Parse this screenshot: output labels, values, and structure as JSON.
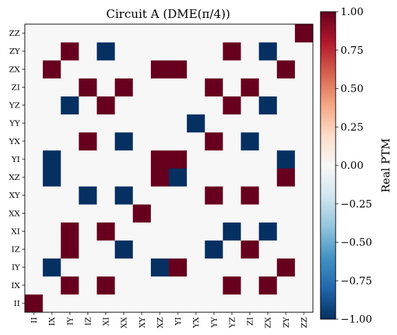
{
  "chart_data": {
    "type": "heatmap",
    "title": "Circuit A (DME(π/4))",
    "x_labels": [
      "II",
      "IX",
      "IY",
      "IZ",
      "XI",
      "XX",
      "XY",
      "XZ",
      "YI",
      "YX",
      "YY",
      "YZ",
      "ZI",
      "ZX",
      "ZY",
      "ZZ"
    ],
    "y_labels": [
      "II",
      "IX",
      "IY",
      "IZ",
      "XI",
      "XX",
      "XY",
      "XZ",
      "YI",
      "YX",
      "YY",
      "YZ",
      "ZI",
      "ZX",
      "ZY",
      "ZZ"
    ],
    "colorbar_label": "Real PTM",
    "colorbar_ticks": [
      "1.00",
      "0.75",
      "0.50",
      "0.25",
      "0.00",
      "−0.25",
      "−0.50",
      "−0.75",
      "−1.00"
    ],
    "colorbar_tick_values": [
      1,
      0.75,
      0.5,
      0.25,
      0,
      -0.25,
      -0.5,
      -0.75,
      -1
    ],
    "vmin": -1,
    "vmax": 1,
    "colormap": "RdBu_r",
    "matrix": [
      [
        1,
        0,
        0,
        0,
        0,
        0,
        0,
        0,
        0,
        0,
        0,
        0,
        0,
        0,
        0,
        0
      ],
      [
        0,
        0,
        1,
        0,
        1,
        0,
        0,
        0,
        0,
        0,
        0,
        1,
        0,
        1,
        0,
        0
      ],
      [
        0,
        -1,
        0,
        0,
        0,
        0,
        0,
        -1,
        1,
        0,
        0,
        0,
        0,
        0,
        1,
        0
      ],
      [
        0,
        0,
        1,
        0,
        0,
        -1,
        0,
        0,
        0,
        0,
        -1,
        0,
        1,
        0,
        0,
        0
      ],
      [
        0,
        0,
        1,
        0,
        1,
        0,
        0,
        0,
        0,
        0,
        0,
        -1,
        0,
        -1,
        0,
        0
      ],
      [
        0,
        0,
        0,
        0,
        0,
        0,
        1,
        0,
        0,
        0,
        0,
        0,
        0,
        0,
        0,
        0
      ],
      [
        0,
        0,
        0,
        -1,
        0,
        -1,
        0,
        0,
        0,
        0,
        1,
        0,
        1,
        0,
        0,
        0
      ],
      [
        0,
        -1,
        0,
        0,
        0,
        0,
        0,
        1,
        -1,
        0,
        0,
        0,
        0,
        0,
        1,
        0
      ],
      [
        0,
        -1,
        0,
        0,
        0,
        0,
        0,
        1,
        1,
        0,
        0,
        0,
        0,
        0,
        -1,
        0
      ],
      [
        0,
        0,
        0,
        1,
        0,
        -1,
        0,
        0,
        0,
        0,
        1,
        0,
        -1,
        0,
        0,
        0
      ],
      [
        0,
        0,
        0,
        0,
        0,
        0,
        0,
        0,
        0,
        -1,
        0,
        0,
        0,
        0,
        0,
        0
      ],
      [
        0,
        0,
        -1,
        0,
        1,
        0,
        0,
        0,
        0,
        0,
        0,
        1,
        0,
        -1,
        0,
        0
      ],
      [
        0,
        0,
        0,
        1,
        0,
        1,
        0,
        0,
        0,
        0,
        1,
        0,
        1,
        0,
        0,
        0
      ],
      [
        0,
        1,
        0,
        0,
        0,
        0,
        0,
        1,
        1,
        0,
        0,
        0,
        0,
        0,
        1,
        0
      ],
      [
        0,
        0,
        1,
        0,
        -1,
        0,
        0,
        0,
        0,
        0,
        0,
        1,
        0,
        -1,
        0,
        0
      ],
      [
        0,
        0,
        0,
        0,
        0,
        0,
        0,
        0,
        0,
        0,
        0,
        0,
        0,
        0,
        0,
        1
      ]
    ]
  }
}
